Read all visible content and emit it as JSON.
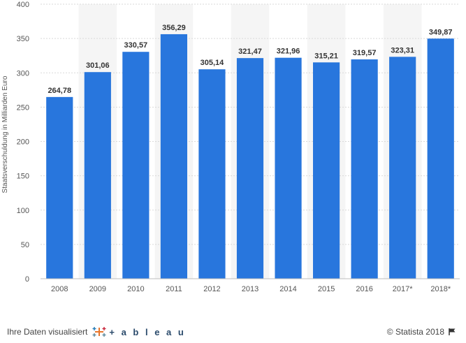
{
  "chart_data": {
    "type": "bar",
    "categories": [
      "2008",
      "2009",
      "2010",
      "2011",
      "2012",
      "2013",
      "2014",
      "2015",
      "2016",
      "2017*",
      "2018*"
    ],
    "values": [
      264.78,
      301.06,
      330.57,
      356.29,
      305.14,
      321.47,
      321.96,
      315.21,
      319.57,
      323.31,
      349.87
    ],
    "value_labels": [
      "264,78",
      "301,06",
      "330,57",
      "356,29",
      "305,14",
      "321,47",
      "321,96",
      "315,21",
      "319,57",
      "323,31",
      "349,87"
    ],
    "title": "",
    "xlabel": "",
    "ylabel": "Staatsverschuldung in Milliarden Euro",
    "ylim": [
      0,
      400
    ],
    "yticks": [
      0,
      50,
      100,
      150,
      200,
      250,
      300,
      350,
      400
    ],
    "grid": true,
    "legend": "none",
    "bar_color": "#2876dd",
    "alt_band_color": "#f5f5f5"
  },
  "footer": {
    "left_text": "Ihre Daten visualisiert",
    "tableau_word": "+ a b l e a u",
    "tableau_icon": "tableau-plus-icon",
    "copyright": "© Statista 2018",
    "flag_icon": "flag-icon"
  }
}
